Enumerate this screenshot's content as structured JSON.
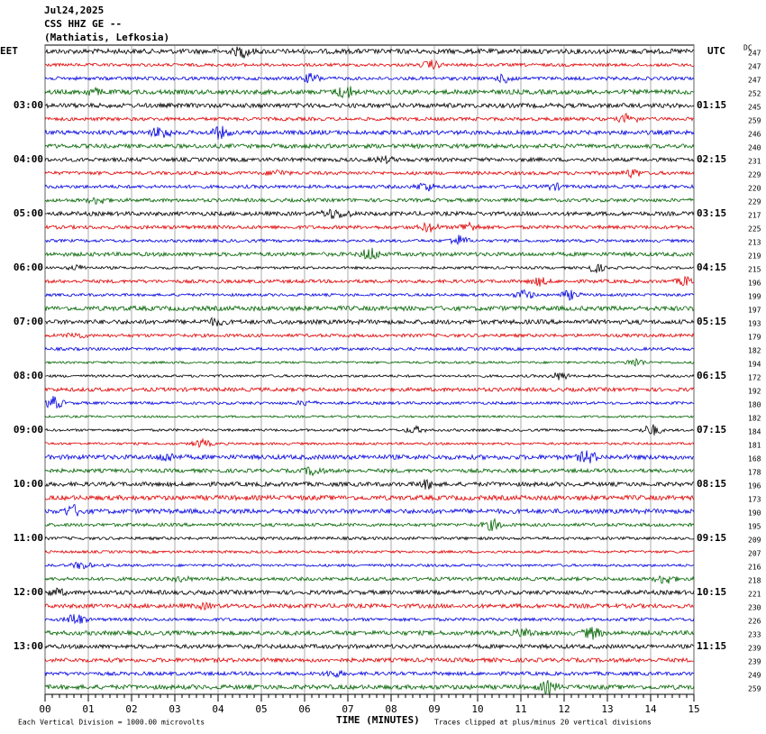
{
  "header": {
    "date": "Jul24,2025",
    "station": "CSS HHZ GE --",
    "location": "(Mathiatis, Lefkosia)"
  },
  "left_zone": "EET",
  "right_zone": "UTC",
  "dc_label": "DC",
  "left_times": [
    "03:00",
    "04:00",
    "05:00",
    "06:00",
    "07:00",
    "08:00",
    "09:00",
    "10:00",
    "11:00",
    "12:00",
    "13:00"
  ],
  "right_times": [
    "01:15",
    "02:15",
    "03:15",
    "04:15",
    "05:15",
    "06:15",
    "07:15",
    "08:15",
    "09:15",
    "10:15",
    "11:15"
  ],
  "dc_values": [
    247,
    247,
    247,
    252,
    245,
    259,
    246,
    240,
    231,
    229,
    220,
    229,
    217,
    225,
    213,
    219,
    215,
    196,
    199,
    197,
    193,
    179,
    182,
    194,
    172,
    192,
    180,
    182,
    184,
    181,
    168,
    178,
    196,
    173,
    190,
    195,
    209,
    207,
    216,
    218,
    221,
    230,
    226,
    233,
    239,
    239,
    249,
    259
  ],
  "x_ticks": [
    "00",
    "01",
    "02",
    "03",
    "04",
    "05",
    "06",
    "07",
    "08",
    "09",
    "10",
    "11",
    "12",
    "13",
    "14",
    "15"
  ],
  "x_axis_label": "TIME (MINUTES)",
  "footer": {
    "scale": "Each Vertical Division = 1000.00 microvolts",
    "clip": "Traces clipped at plus/minus 20 vertical divisions"
  },
  "trace_colors": [
    "#000000",
    "#e00000",
    "#0000e0",
    "#006400"
  ]
}
